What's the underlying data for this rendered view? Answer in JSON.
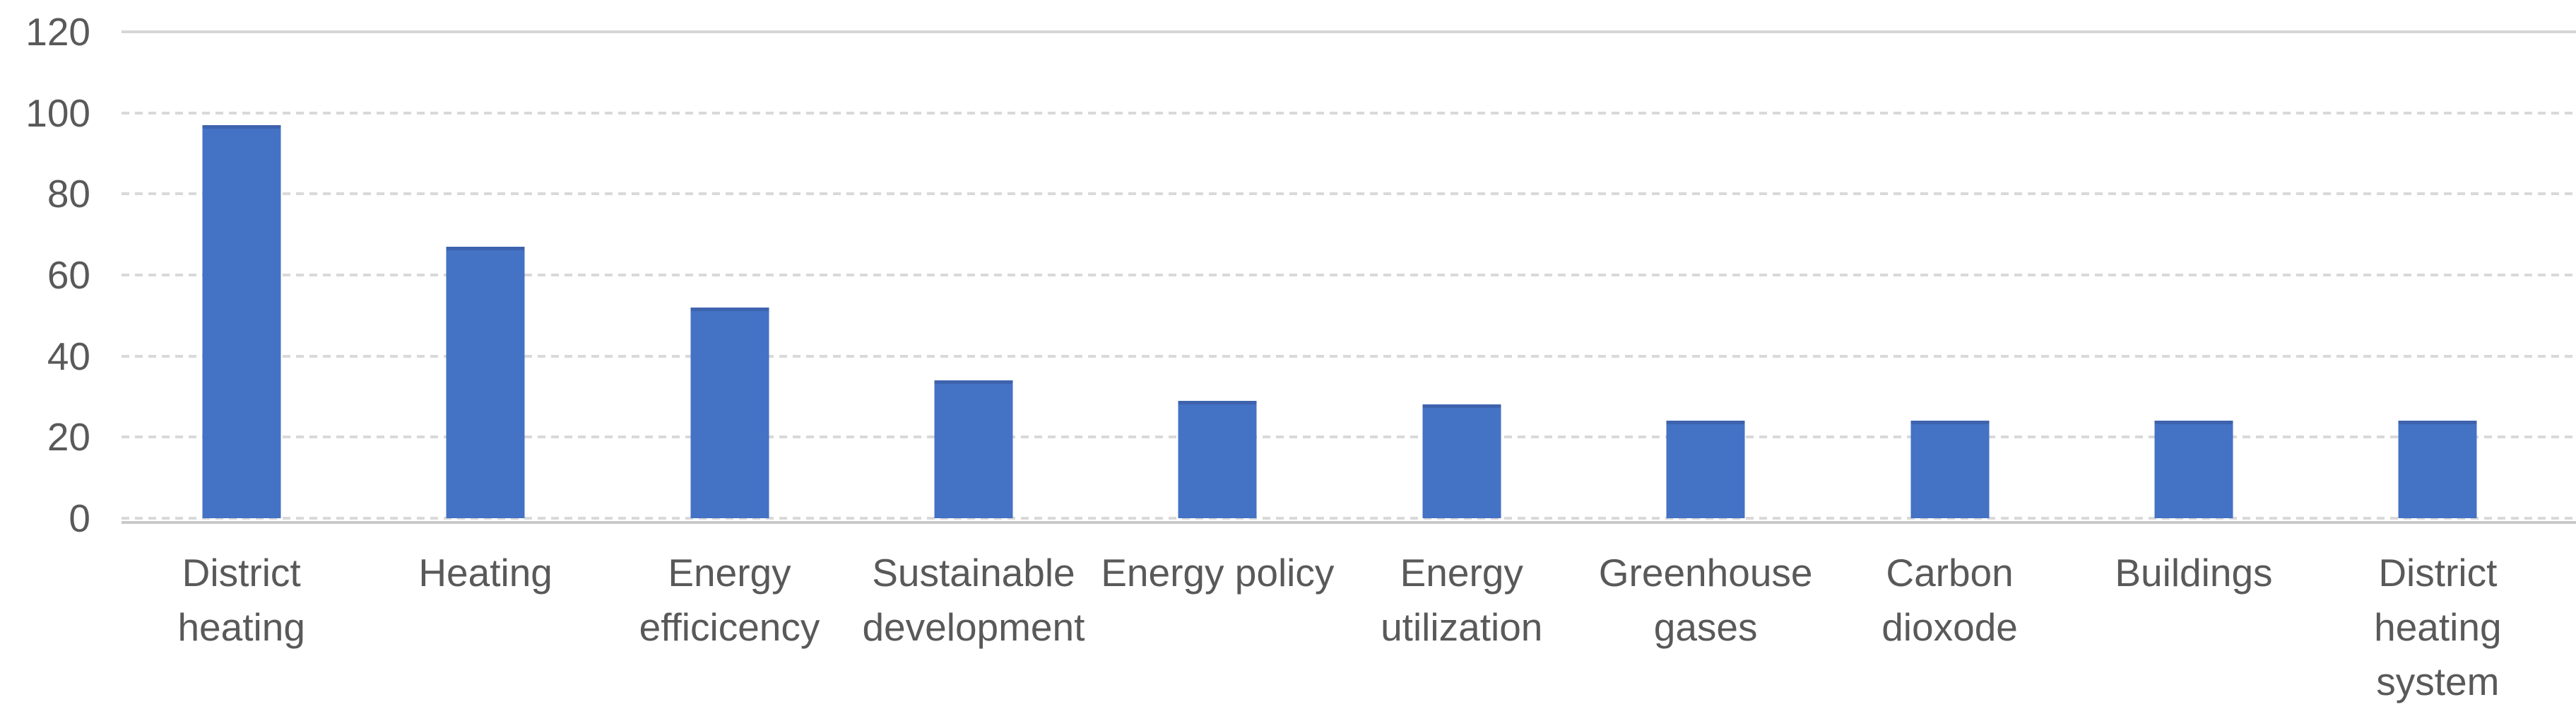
{
  "chart_data": {
    "type": "bar",
    "title": "",
    "xlabel": "",
    "ylabel": "",
    "categories": [
      "District heating",
      "Heating",
      "Energy efficicency",
      "Sustainable development",
      "Energy policy",
      "Energy utilization",
      "Greenhouse gases",
      "Carbon dioxode",
      "Buildings",
      "District heating system"
    ],
    "label_lines": [
      [
        "District",
        "heating"
      ],
      [
        "Heating"
      ],
      [
        "Energy",
        "efficicency"
      ],
      [
        "Sustainable",
        "development"
      ],
      [
        "Energy policy"
      ],
      [
        "Energy",
        "utilization"
      ],
      [
        "Greenhouse",
        "gases"
      ],
      [
        "Carbon",
        "dioxode"
      ],
      [
        "Buildings"
      ],
      [
        "District",
        "heating",
        "system"
      ]
    ],
    "values": [
      97,
      67,
      52,
      34,
      29,
      28,
      24,
      24,
      24,
      24
    ],
    "ylim": [
      0,
      120
    ],
    "yticks": [
      0,
      20,
      40,
      60,
      80,
      100,
      120
    ],
    "grid": "horizontal-dashed",
    "legend": "none",
    "colors": {
      "bar_fill": "#4472C4",
      "bar_top_edge": "#3e63ae",
      "gridline": "#d9d9d9",
      "gridline_top_solid": "#d6d6d6",
      "axis_line": "#c9c9c9",
      "tick_text": "#595959"
    }
  }
}
